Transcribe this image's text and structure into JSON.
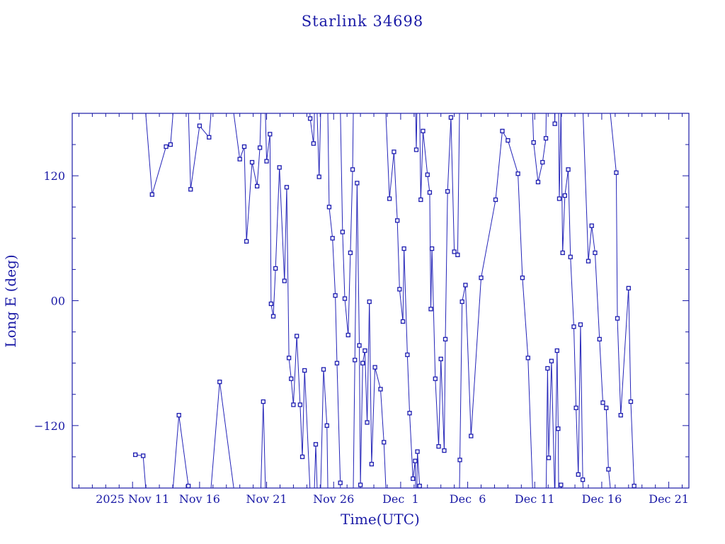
{
  "colors": {
    "axis": "#1a1aa6",
    "series": "#2323b8",
    "background": "#ffffff"
  },
  "chart_data": {
    "type": "line",
    "title": "Starlink 34698",
    "xlabel": "Time(UTC)",
    "ylabel": "Long E (deg)",
    "x_unit": "date (2025, UTC)",
    "x_ticks": [
      {
        "label": "2025 Nov 11",
        "date": "2025-11-11"
      },
      {
        "label": "Nov 16",
        "date": "2025-11-16"
      },
      {
        "label": "Nov 21",
        "date": "2025-11-21"
      },
      {
        "label": "Nov 26",
        "date": "2025-11-26"
      },
      {
        "label": "Dec  1",
        "date": "2025-12-01"
      },
      {
        "label": "Dec  6",
        "date": "2025-12-06"
      },
      {
        "label": "Dec 11",
        "date": "2025-12-11"
      },
      {
        "label": "Dec 16",
        "date": "2025-12-16"
      },
      {
        "label": "Dec 21",
        "date": "2025-12-21"
      }
    ],
    "y_ticks": [
      {
        "label": "120",
        "value": 120
      },
      {
        "label": "00",
        "value": 0
      },
      {
        "label": "−120",
        "value": -120
      }
    ],
    "xlim": [
      "2025-11-06T12:00",
      "2025-12-22T12:00"
    ],
    "ylim": [
      -180,
      180
    ],
    "grid": false,
    "legend": "none",
    "markers": "open-square",
    "points": [
      [
        "2025-11-11T05:00",
        -148
      ],
      [
        "2025-11-11T19:00",
        -149
      ],
      [
        "2025-11-12T11:00",
        102
      ],
      [
        "2025-11-13T12:00",
        148
      ],
      [
        "2025-11-13T20:00",
        150
      ],
      [
        "2025-11-14T11:00",
        -110
      ],
      [
        "2025-11-15T04:00",
        -178
      ],
      [
        "2025-11-15T08:00",
        107
      ],
      [
        "2025-11-16T00:00",
        168
      ],
      [
        "2025-11-16T17:00",
        157
      ],
      [
        "2025-11-17T12:00",
        -78
      ],
      [
        "2025-11-19T00:00",
        136
      ],
      [
        "2025-11-19T08:00",
        148
      ],
      [
        "2025-11-19T12:00",
        57
      ],
      [
        "2025-11-19T22:00",
        133
      ],
      [
        "2025-11-20T07:00",
        110
      ],
      [
        "2025-11-20T12:00",
        147
      ],
      [
        "2025-11-20T18:00",
        -97
      ],
      [
        "2025-11-21T00:00",
        134
      ],
      [
        "2025-11-21T06:00",
        160
      ],
      [
        "2025-11-21T08:00",
        -3
      ],
      [
        "2025-11-21T12:00",
        -15
      ],
      [
        "2025-11-21T16:00",
        31
      ],
      [
        "2025-11-21T23:00",
        128
      ],
      [
        "2025-11-22T08:00",
        19
      ],
      [
        "2025-11-22T12:00",
        109
      ],
      [
        "2025-11-22T16:00",
        -55
      ],
      [
        "2025-11-22T20:00",
        -75
      ],
      [
        "2025-11-23T00:00",
        -100
      ],
      [
        "2025-11-23T06:00",
        -34
      ],
      [
        "2025-11-23T12:00",
        -100
      ],
      [
        "2025-11-23T16:00",
        -150
      ],
      [
        "2025-11-23T20:00",
        -67
      ],
      [
        "2025-11-24T06:00",
        175
      ],
      [
        "2025-11-24T12:00",
        151
      ],
      [
        "2025-11-24T16:00",
        -138
      ],
      [
        "2025-11-24T22:00",
        119
      ],
      [
        "2025-11-25T06:00",
        -66
      ],
      [
        "2025-11-25T12:00",
        -120
      ],
      [
        "2025-11-25T16:00",
        90
      ],
      [
        "2025-11-25T22:00",
        60
      ],
      [
        "2025-11-26T03:00",
        5
      ],
      [
        "2025-11-26T06:00",
        -60
      ],
      [
        "2025-11-26T12:00",
        -175
      ],
      [
        "2025-11-26T16:00",
        66
      ],
      [
        "2025-11-26T20:00",
        2
      ],
      [
        "2025-11-27T02:00",
        -33
      ],
      [
        "2025-11-27T06:00",
        46
      ],
      [
        "2025-11-27T10:00",
        126
      ],
      [
        "2025-11-27T14:00",
        -57
      ],
      [
        "2025-11-27T18:00",
        113
      ],
      [
        "2025-11-27T22:00",
        -43
      ],
      [
        "2025-11-28T00:00",
        -177
      ],
      [
        "2025-11-28T04:00",
        -60
      ],
      [
        "2025-11-28T08:00",
        -48
      ],
      [
        "2025-11-28T12:00",
        -117
      ],
      [
        "2025-11-28T16:00",
        -1
      ],
      [
        "2025-11-28T20:00",
        -157
      ],
      [
        "2025-11-29T02:00",
        -64
      ],
      [
        "2025-11-29T12:00",
        -85
      ],
      [
        "2025-11-29T18:00",
        -136
      ],
      [
        "2025-11-30T04:00",
        98
      ],
      [
        "2025-11-30T12:00",
        143
      ],
      [
        "2025-11-30T18:00",
        77
      ],
      [
        "2025-11-30T22:00",
        11
      ],
      [
        "2025-12-01T04:00",
        -20
      ],
      [
        "2025-12-01T06:00",
        50
      ],
      [
        "2025-12-01T12:00",
        -52
      ],
      [
        "2025-12-01T16:00",
        -108
      ],
      [
        "2025-12-01T22:00",
        -171
      ],
      [
        "2025-12-02T02:00",
        -154
      ],
      [
        "2025-12-02T04:00",
        145
      ],
      [
        "2025-12-02T06:00",
        -145
      ],
      [
        "2025-12-02T10:00",
        -178
      ],
      [
        "2025-12-02T12:00",
        97
      ],
      [
        "2025-12-02T16:00",
        163
      ],
      [
        "2025-12-03T00:00",
        121
      ],
      [
        "2025-12-03T04:00",
        104
      ],
      [
        "2025-12-03T06:00",
        -8
      ],
      [
        "2025-12-03T08:00",
        50
      ],
      [
        "2025-12-03T14:00",
        -75
      ],
      [
        "2025-12-03T20:00",
        -140
      ],
      [
        "2025-12-04T00:00",
        -56
      ],
      [
        "2025-12-04T06:00",
        -144
      ],
      [
        "2025-12-04T08:00",
        -37
      ],
      [
        "2025-12-04T12:00",
        105
      ],
      [
        "2025-12-04T18:00",
        176
      ],
      [
        "2025-12-05T00:00",
        47
      ],
      [
        "2025-12-05T06:00",
        44
      ],
      [
        "2025-12-05T10:00",
        -153
      ],
      [
        "2025-12-05T14:00",
        -1
      ],
      [
        "2025-12-05T20:00",
        15
      ],
      [
        "2025-12-06T06:00",
        -130
      ],
      [
        "2025-12-07T00:00",
        22
      ],
      [
        "2025-12-08T02:00",
        97
      ],
      [
        "2025-12-08T14:00",
        163
      ],
      [
        "2025-12-09T00:00",
        154
      ],
      [
        "2025-12-09T18:00",
        122
      ],
      [
        "2025-12-10T02:00",
        22
      ],
      [
        "2025-12-10T12:00",
        -55
      ],
      [
        "2025-12-10T22:00",
        152
      ],
      [
        "2025-12-11T06:00",
        114
      ],
      [
        "2025-12-11T14:00",
        133
      ],
      [
        "2025-12-11T20:00",
        156
      ],
      [
        "2025-12-11T23:00",
        -65
      ],
      [
        "2025-12-12T01:00",
        -151
      ],
      [
        "2025-12-12T06:00",
        -58
      ],
      [
        "2025-12-12T12:00",
        170
      ],
      [
        "2025-12-12T16:00",
        -48
      ],
      [
        "2025-12-12T18:00",
        -123
      ],
      [
        "2025-12-12T20:00",
        98
      ],
      [
        "2025-12-12T23:00",
        -177
      ],
      [
        "2025-12-13T02:00",
        46
      ],
      [
        "2025-12-13T06:00",
        101
      ],
      [
        "2025-12-13T12:00",
        126
      ],
      [
        "2025-12-13T16:00",
        42
      ],
      [
        "2025-12-13T22:00",
        -25
      ],
      [
        "2025-12-14T02:00",
        -103
      ],
      [
        "2025-12-14T06:00",
        -167
      ],
      [
        "2025-12-14T10:00",
        -23
      ],
      [
        "2025-12-14T14:00",
        -172
      ],
      [
        "2025-12-15T00:00",
        38
      ],
      [
        "2025-12-15T06:00",
        72
      ],
      [
        "2025-12-15T12:00",
        46
      ],
      [
        "2025-12-15T20:00",
        -37
      ],
      [
        "2025-12-16T02:00",
        -98
      ],
      [
        "2025-12-16T08:00",
        -103
      ],
      [
        "2025-12-16T12:00",
        -162
      ],
      [
        "2025-12-17T02:00",
        123
      ],
      [
        "2025-12-17T04:00",
        -17
      ],
      [
        "2025-12-17T10:00",
        -110
      ],
      [
        "2025-12-18T00:00",
        12
      ],
      [
        "2025-12-18T04:00",
        -97
      ],
      [
        "2025-12-18T10:00",
        -178
      ]
    ]
  }
}
